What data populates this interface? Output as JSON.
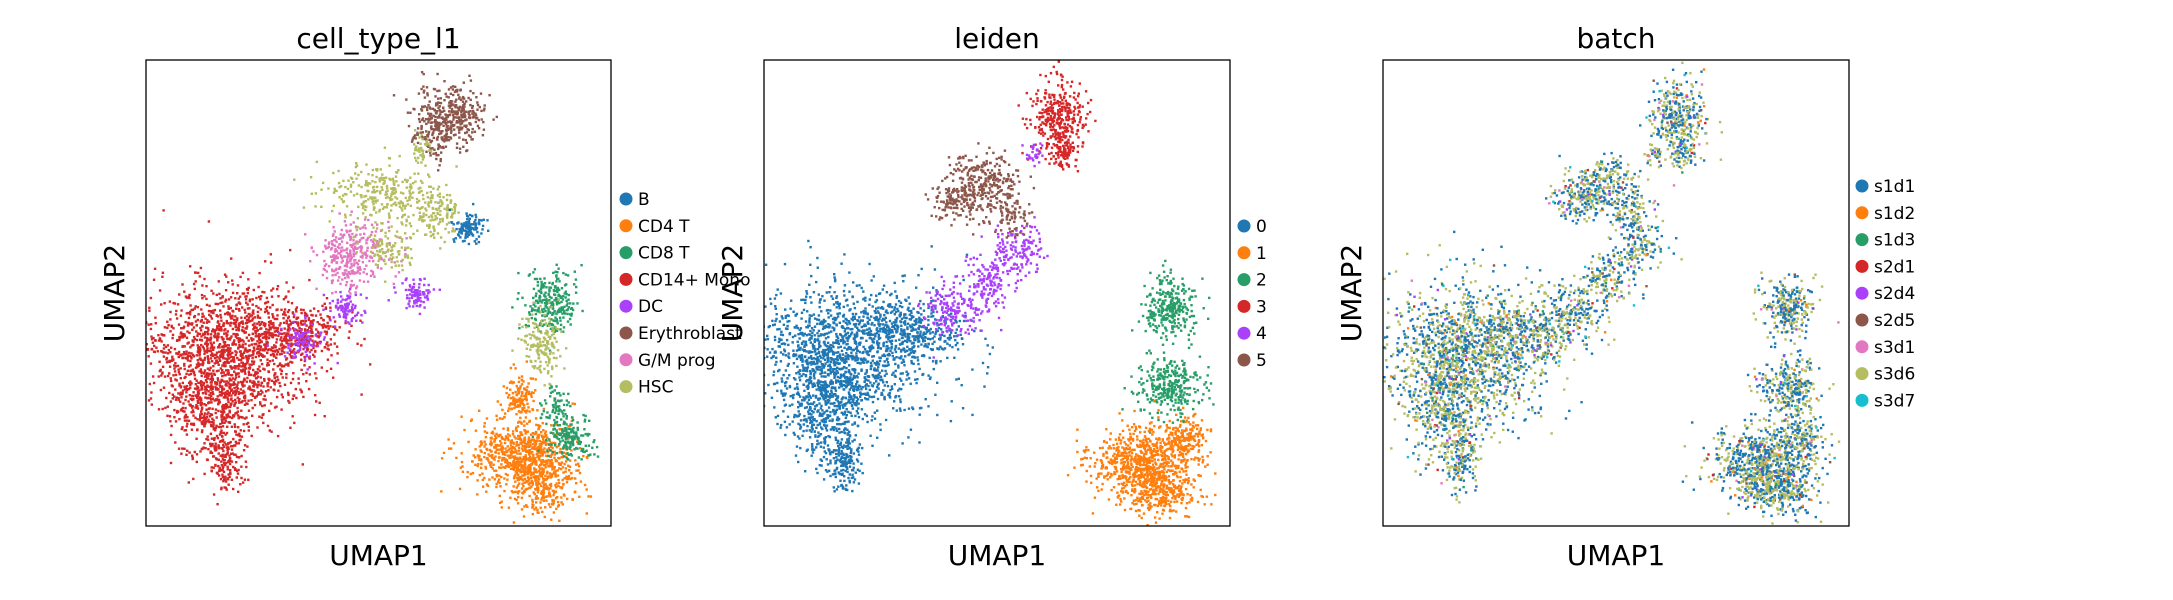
{
  "chart_data": [
    {
      "type": "scatter",
      "title": "cell_type_l1",
      "xlabel": "UMAP1",
      "ylabel": "UMAP2",
      "xticks": false,
      "yticks": false,
      "legend_position": "right",
      "legend": [
        {
          "label": "B",
          "color": "#1f77b4"
        },
        {
          "label": "CD4 T",
          "color": "#ff7f0e"
        },
        {
          "label": "CD8 T",
          "color": "#279e68"
        },
        {
          "label": "CD14+ Mono",
          "color": "#d62728"
        },
        {
          "label": "DC",
          "color": "#aa40fc"
        },
        {
          "label": "Erythroblast",
          "color": "#8c564b"
        },
        {
          "label": "G/M prog",
          "color": "#e377c2"
        },
        {
          "label": "HSC",
          "color": "#b5bd61"
        }
      ]
    },
    {
      "type": "scatter",
      "title": "leiden",
      "xlabel": "UMAP1",
      "ylabel": "UMAP2",
      "xticks": false,
      "yticks": false,
      "legend_position": "right",
      "legend": [
        {
          "label": "0",
          "color": "#1f77b4"
        },
        {
          "label": "1",
          "color": "#ff7f0e"
        },
        {
          "label": "2",
          "color": "#279e68"
        },
        {
          "label": "3",
          "color": "#d62728"
        },
        {
          "label": "4",
          "color": "#aa40fc"
        },
        {
          "label": "5",
          "color": "#8c564b"
        }
      ]
    },
    {
      "type": "scatter",
      "title": "batch",
      "xlabel": "UMAP1",
      "ylabel": "UMAP2",
      "xticks": false,
      "yticks": false,
      "legend_position": "right",
      "legend": [
        {
          "label": "s1d1",
          "color": "#1f77b4"
        },
        {
          "label": "s1d2",
          "color": "#ff7f0e"
        },
        {
          "label": "s1d3",
          "color": "#279e68"
        },
        {
          "label": "s2d1",
          "color": "#d62728"
        },
        {
          "label": "s2d4",
          "color": "#aa40fc"
        },
        {
          "label": "s2d5",
          "color": "#8c564b"
        },
        {
          "label": "s3d1",
          "color": "#e377c2"
        },
        {
          "label": "s3d6",
          "color": "#b5bd61"
        },
        {
          "label": "s3d7",
          "color": "#17becf"
        }
      ]
    }
  ]
}
